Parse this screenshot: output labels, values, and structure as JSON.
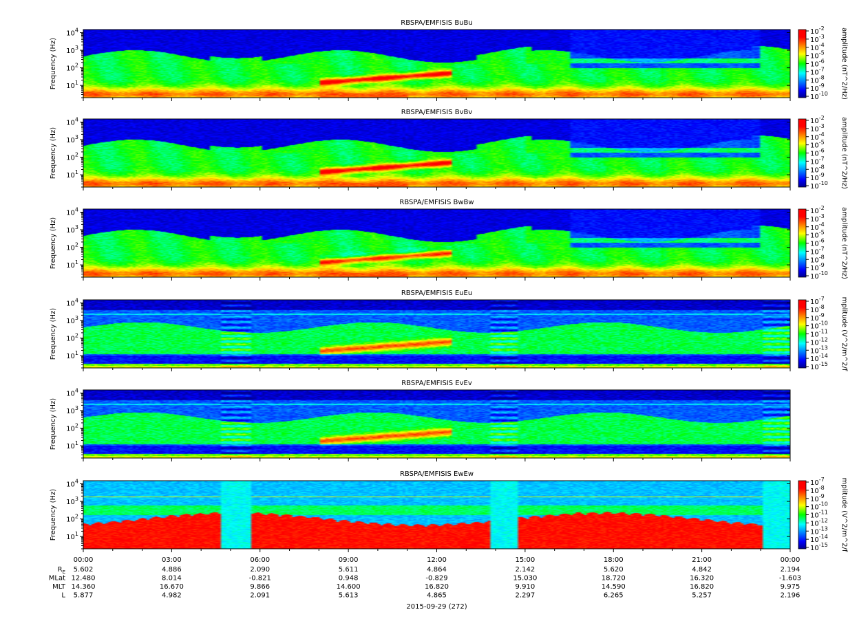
{
  "chart_data": {
    "type": "heatmap",
    "panels": [
      {
        "title": "RBSPA/EMFISIS  BuBu",
        "ylabel": "Frequency (Hz)",
        "yscale": "log",
        "ylim": [
          2,
          15000
        ],
        "colorbar": true,
        "colorbar_label": "amplitude (nT^2/Hz)",
        "colorbar_exponents": [
          -2,
          -3,
          -4,
          -5,
          -6,
          -7,
          -8,
          -9,
          -10
        ],
        "colorbar_range": [
          1e-10,
          0.01
        ],
        "kind": "B"
      },
      {
        "title": "RBSPA/EMFISIS  BvBv",
        "ylabel": "Frequency (Hz)",
        "yscale": "log",
        "ylim": [
          2,
          15000
        ],
        "colorbar": true,
        "colorbar_label": "amplitude (nT^2/Hz)",
        "colorbar_exponents": [
          -2,
          -3,
          -4,
          -5,
          -6,
          -7,
          -8,
          -9,
          -10
        ],
        "colorbar_range": [
          1e-10,
          0.01
        ],
        "kind": "B"
      },
      {
        "title": "RBSPA/EMFISIS  BwBw",
        "ylabel": "Frequency (Hz)",
        "yscale": "log",
        "ylim": [
          2,
          15000
        ],
        "colorbar": true,
        "colorbar_label": "amplitude (nT^2/Hz)",
        "colorbar_exponents": [
          -2,
          -3,
          -4,
          -5,
          -6,
          -7,
          -8,
          -9,
          -10
        ],
        "colorbar_range": [
          1e-10,
          0.01
        ],
        "kind": "Bw"
      },
      {
        "title": "RBSPA/EMFISIS  EuEu",
        "ylabel": "Frequency (Hz)",
        "yscale": "log",
        "ylim": [
          2,
          15000
        ],
        "colorbar": true,
        "colorbar_label": "mplitude (V^2/m^2/f",
        "colorbar_exponents": [
          -7,
          -8,
          -9,
          -10,
          -11,
          -12,
          -13,
          -14,
          -15
        ],
        "colorbar_range": [
          1e-15,
          1e-07
        ],
        "kind": "E"
      },
      {
        "title": "RBSPA/EMFISIS  EvEv",
        "ylabel": "Frequency (Hz)",
        "yscale": "log",
        "ylim": [
          2,
          15000
        ],
        "colorbar": false,
        "colorbar_label": "",
        "colorbar_exponents": [],
        "colorbar_range": [
          1e-15,
          1e-07
        ],
        "kind": "E"
      },
      {
        "title": "RBSPA/EMFISIS  EwEw",
        "ylabel": "Frequency (Hz)",
        "yscale": "log",
        "ylim": [
          2,
          15000
        ],
        "colorbar": true,
        "colorbar_label": "mplitude (V^2/m^2/f",
        "colorbar_exponents": [
          -7,
          -8,
          -9,
          -10,
          -11,
          -12,
          -13,
          -14,
          -15
        ],
        "colorbar_range": [
          1e-15,
          1e-07
        ],
        "kind": "Ew"
      }
    ],
    "y_ticks": [
      {
        "base": "10",
        "exp": "4",
        "value": 10000
      },
      {
        "base": "10",
        "exp": "3",
        "value": 1000
      },
      {
        "base": "10",
        "exp": "2",
        "value": 100
      },
      {
        "base": "10",
        "exp": "1",
        "value": 10
      }
    ],
    "x_range_hours": [
      0,
      24
    ],
    "x_ticks": [
      {
        "hour": 0,
        "label": "00:00"
      },
      {
        "hour": 3,
        "label": "03:00"
      },
      {
        "hour": 6,
        "label": "06:00"
      },
      {
        "hour": 9,
        "label": "09:00"
      },
      {
        "hour": 12,
        "label": "12:00"
      },
      {
        "hour": 15,
        "label": "15:00"
      },
      {
        "hour": 18,
        "label": "18:00"
      },
      {
        "hour": 21,
        "label": "21:00"
      },
      {
        "hour": 24,
        "label": "00:00"
      }
    ],
    "ephemeris": [
      {
        "name": "R",
        "sub": "E",
        "values": [
          "5.602",
          "4.886",
          "2.090",
          "5.611",
          "4.864",
          "2.142",
          "5.620",
          "4.842",
          "2.194"
        ]
      },
      {
        "name": "MLat",
        "sub": "",
        "values": [
          "12.480",
          "8.014",
          "-0.821",
          "0.948",
          "-0.829",
          "15.030",
          "18.720",
          "16.320",
          "-1.603"
        ]
      },
      {
        "name": "MLT",
        "sub": "",
        "values": [
          "14.360",
          "16.670",
          "9.866",
          "14.600",
          "16.820",
          "9.910",
          "14.590",
          "16.820",
          "9.975"
        ]
      },
      {
        "name": "L",
        "sub": "",
        "values": [
          "5.877",
          "4.982",
          "2.091",
          "5.613",
          "4.865",
          "2.297",
          "6.265",
          "5.257",
          "2.196"
        ]
      }
    ],
    "date_label": "2015-09-29 (272)"
  }
}
